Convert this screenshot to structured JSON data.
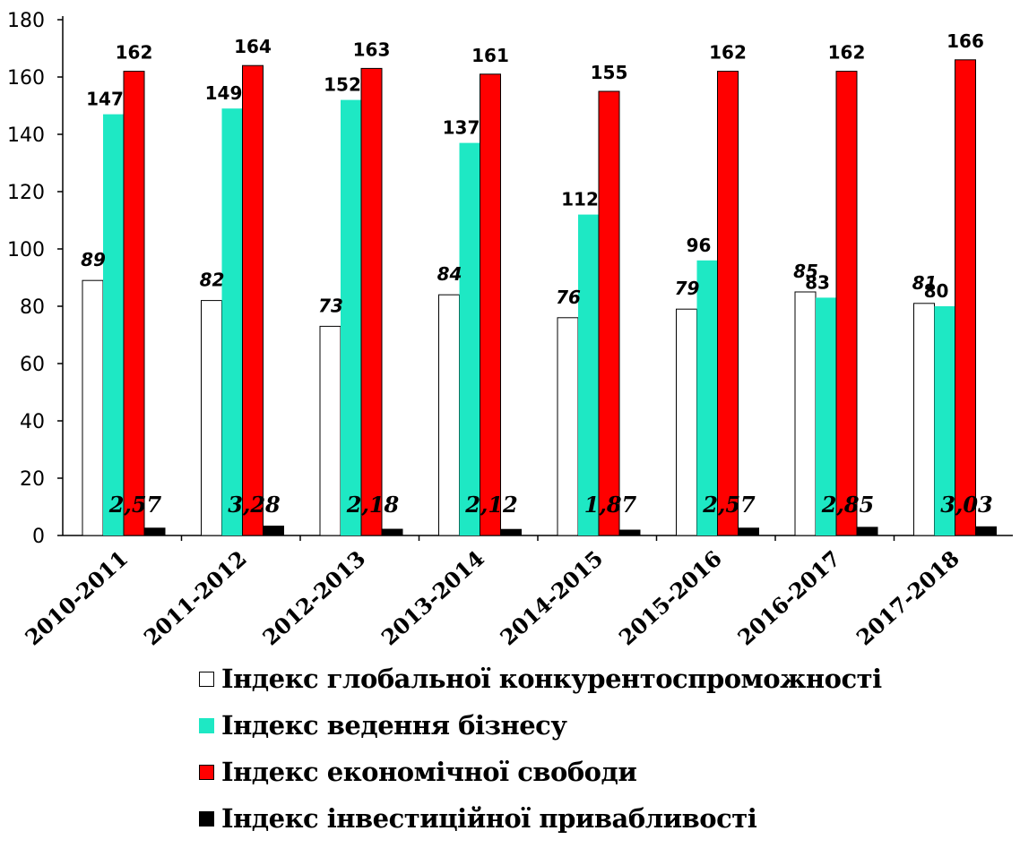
{
  "chart_data": {
    "type": "bar",
    "categories": [
      "2010-2011",
      "2011-2012",
      "2012-2013",
      "2013-2014",
      "2014-2015",
      "2015-2016",
      "2016-2017",
      "2017-2018"
    ],
    "ylim": [
      0,
      180
    ],
    "yticks": [
      0,
      20,
      40,
      60,
      80,
      100,
      120,
      140,
      160,
      180
    ],
    "grid": false,
    "legend_position": "bottom",
    "series": [
      {
        "name": "Індекс глобальної конкурентоспроможності",
        "color": "#ffffff",
        "values": [
          89,
          82,
          73,
          84,
          76,
          79,
          85,
          81
        ],
        "labels": [
          "89",
          "82",
          "73",
          "84",
          "76",
          "79",
          "85",
          "81"
        ]
      },
      {
        "name": "Індекс ведення бізнесу",
        "color": "#1ee8c4",
        "values": [
          147,
          149,
          152,
          137,
          112,
          96,
          83,
          80
        ],
        "labels": [
          "147",
          "149",
          "152",
          "137",
          "112",
          "96",
          "83",
          "80"
        ]
      },
      {
        "name": "Індекс економічної свободи",
        "color": "#ff0000",
        "values": [
          162,
          164,
          163,
          161,
          155,
          162,
          162,
          166
        ],
        "labels": [
          "162",
          "164",
          "163",
          "161",
          "155",
          "162",
          "162",
          "166"
        ]
      },
      {
        "name": "Індекс інвестиційної привабливості",
        "color": "#000000",
        "values": [
          2.57,
          3.28,
          2.18,
          2.12,
          1.87,
          2.57,
          2.85,
          3.03
        ],
        "labels": [
          "2,57",
          "3,28",
          "2,18",
          "2,12",
          "1,87",
          "2,57",
          "2,85",
          "3,03"
        ]
      }
    ]
  }
}
